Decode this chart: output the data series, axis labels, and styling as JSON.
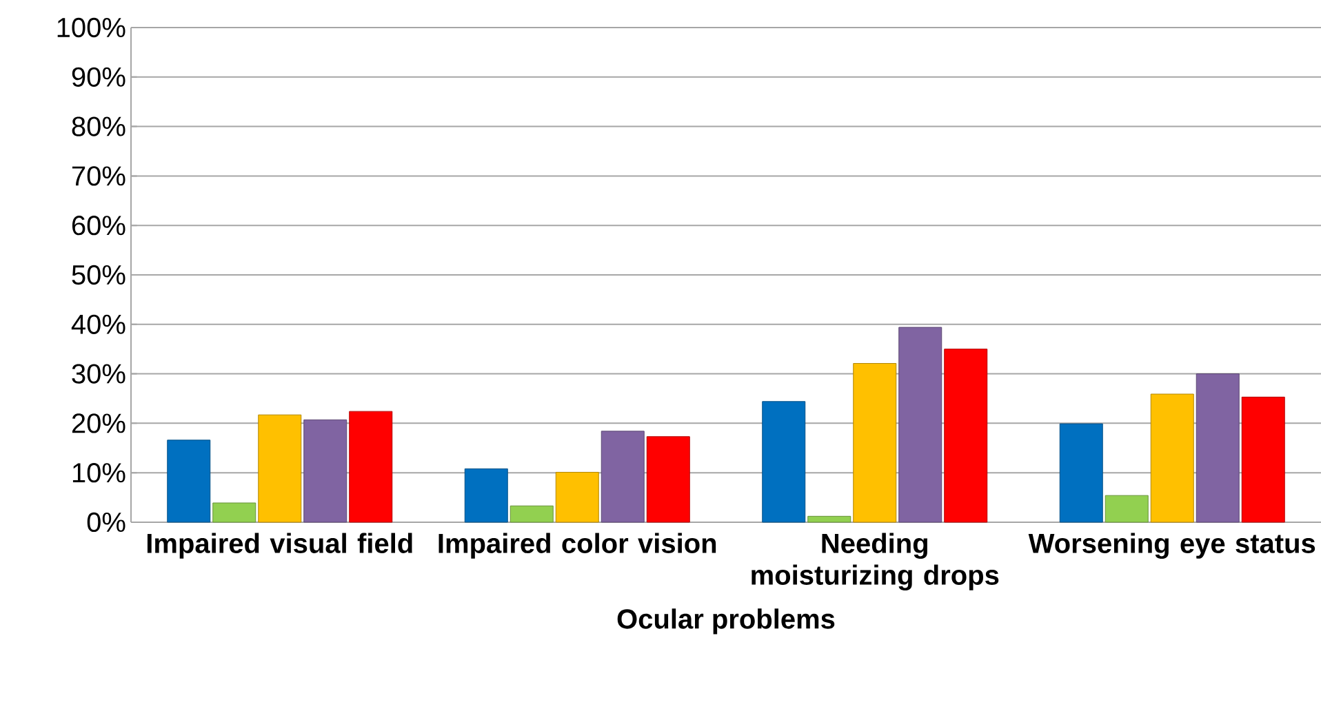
{
  "chart_data": {
    "type": "bar",
    "xlabel": "Ocular problems",
    "categories": [
      "Impaired visual field",
      "Impaired color vision",
      "Needing moisturizing drops",
      "Worsening eye status"
    ],
    "series": [
      {
        "color": "#0070c0",
        "values": [
          16.6,
          10.8,
          24.4,
          19.9
        ]
      },
      {
        "color": "#92d050",
        "values": [
          3.9,
          3.3,
          1.2,
          5.4
        ]
      },
      {
        "color": "#ffc000",
        "values": [
          21.7,
          10.1,
          32.1,
          25.9
        ]
      },
      {
        "color": "#8064a2",
        "values": [
          20.7,
          18.4,
          39.4,
          30.0
        ]
      },
      {
        "color": "#ff0000",
        "values": [
          22.4,
          17.3,
          35.0,
          25.3
        ]
      }
    ],
    "ylim": [
      0,
      100
    ],
    "yticks": [
      {
        "value": 0,
        "label": "0%"
      },
      {
        "value": 10,
        "label": "10%"
      },
      {
        "value": 20,
        "label": "20%"
      },
      {
        "value": 30,
        "label": "30%"
      },
      {
        "value": 40,
        "label": "40%"
      },
      {
        "value": 50,
        "label": "50%"
      },
      {
        "value": 60,
        "label": "60%"
      },
      {
        "value": 70,
        "label": "70%"
      },
      {
        "value": 80,
        "label": "80%"
      },
      {
        "value": 90,
        "label": "90%"
      },
      {
        "value": 100,
        "label": "100%"
      }
    ],
    "grid": "y"
  }
}
